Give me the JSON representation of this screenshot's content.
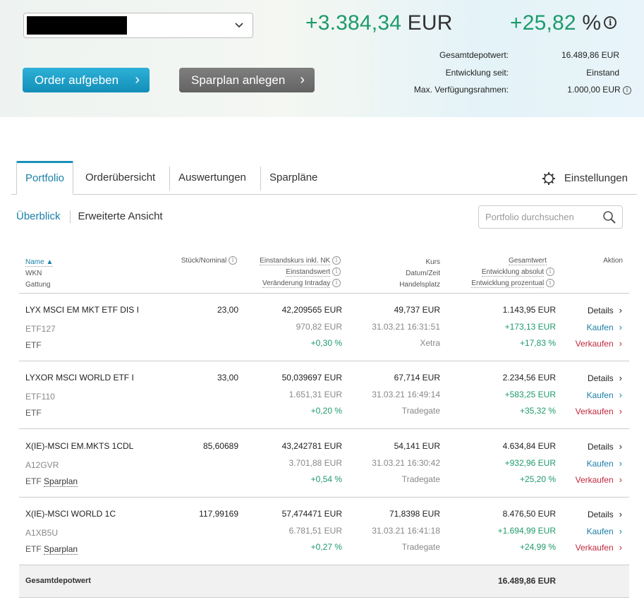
{
  "header": {
    "depot_select_value": "",
    "total_change_abs_num": "+3.384,34",
    "total_change_abs_cur": "EUR",
    "total_change_pct_num": "+25,82",
    "total_change_pct_unit": "%",
    "info_glyph": "i",
    "kv": [
      {
        "label": "Gesamtdepotwert:",
        "value": "16.489,86 EUR"
      },
      {
        "label": "Entwicklung seit:",
        "value": "Einstand"
      },
      {
        "label": "Max. Verfügungsrahmen:",
        "value": "1.000,00 EUR"
      }
    ],
    "btn_order": "Order aufgeben",
    "btn_sparplan": "Sparplan anlegen"
  },
  "tabs": [
    "Portfolio",
    "Orderübersicht",
    "Auswertungen",
    "Sparpläne"
  ],
  "settings_label": "Einstellungen",
  "subnav": {
    "overview": "Überblick",
    "extended": "Erweiterte Ansicht"
  },
  "search": {
    "placeholder": "Portfolio durchsuchen"
  },
  "columns": {
    "name": "Name ▲",
    "wkn": "WKN",
    "gattung": "Gattung",
    "stueck": "Stück/Nominal",
    "einstandskurs": "Einstandskurs inkl. NK",
    "einstandswert": "Einstandswert",
    "intraday": "Veränderung Intraday",
    "kurs": "Kurs",
    "datum": "Datum/Zeit",
    "handelsplatz": "Handelsplatz",
    "gesamtwert": "Gesamtwert",
    "entw_abs": "Entwicklung absolut",
    "entw_pct": "Entwicklung prozentual",
    "aktion": "Aktion"
  },
  "rows": [
    {
      "name": "LYX MSCI EM MKT ETF DIS I",
      "wkn": "ETF127",
      "gattung": "ETF",
      "sparplan": "",
      "stueck": "23,00",
      "einstandskurs": "42,209565 EUR",
      "einstandswert": "970,82 EUR",
      "intraday": "+0,30 %",
      "kurs": "49,737 EUR",
      "datum": "31.03.21 16:31:51",
      "handelsplatz": "Xetra",
      "gesamtwert": "1.143,95 EUR",
      "entw_abs": "+173,13 EUR",
      "entw_pct": "+17,83 %"
    },
    {
      "name": "LYXOR MSCI WORLD ETF I",
      "wkn": "ETF110",
      "gattung": "ETF",
      "sparplan": "",
      "stueck": "33,00",
      "einstandskurs": "50,039697 EUR",
      "einstandswert": "1.651,31 EUR",
      "intraday": "+0,20 %",
      "kurs": "67,714 EUR",
      "datum": "31.03.21 16:49:14",
      "handelsplatz": "Tradegate",
      "gesamtwert": "2.234,56 EUR",
      "entw_abs": "+583,25 EUR",
      "entw_pct": "+35,32 %"
    },
    {
      "name": "X(IE)-MSCI EM.MKTS 1CDL",
      "wkn": "A12GVR",
      "gattung": "ETF",
      "sparplan": "Sparplan",
      "stueck": "85,60689",
      "einstandskurs": "43,242781 EUR",
      "einstandswert": "3.701,88 EUR",
      "intraday": "+0,54 %",
      "kurs": "54,141 EUR",
      "datum": "31.03.21 16:30:42",
      "handelsplatz": "Tradegate",
      "gesamtwert": "4.634,84 EUR",
      "entw_abs": "+932,96 EUR",
      "entw_pct": "+25,20 %"
    },
    {
      "name": "X(IE)-MSCI WORLD 1C",
      "wkn": "A1XB5U",
      "gattung": "ETF",
      "sparplan": "Sparplan",
      "stueck": "117,99169",
      "einstandskurs": "57,474471 EUR",
      "einstandswert": "6.781,51 EUR",
      "intraday": "+0,27 %",
      "kurs": "71,8398 EUR",
      "datum": "31.03.21 16:41:18",
      "handelsplatz": "Tradegate",
      "gesamtwert": "8.476,50 EUR",
      "entw_abs": "+1.694,99 EUR",
      "entw_pct": "+24,99 %"
    }
  ],
  "actions": {
    "details": "Details",
    "kaufen": "Kaufen",
    "verkaufen": "Verkaufen"
  },
  "total": {
    "label": "Gesamtdepotwert",
    "value": "16.489,86 EUR"
  },
  "colors": {
    "green": "#1e9a6a",
    "accent": "#1a7fa7",
    "sell": "#c0283d",
    "order_button": "#1a9fc8",
    "sparplan_button": "#6e6e6e"
  }
}
